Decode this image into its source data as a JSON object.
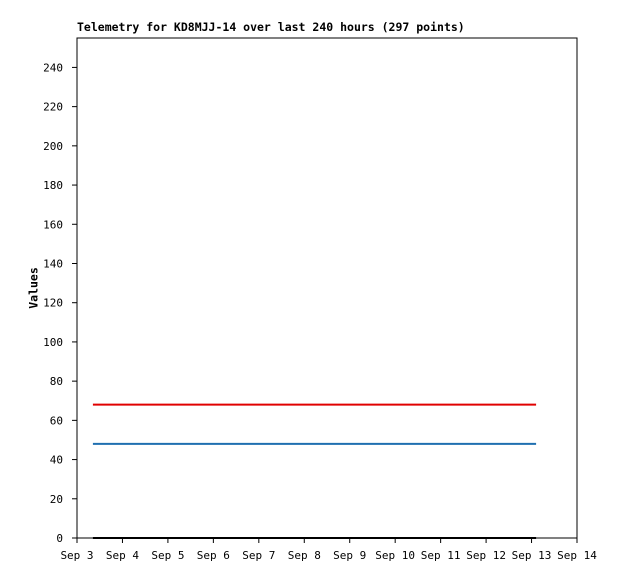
{
  "chart_data": {
    "type": "line",
    "title": "Telemetry for KD8MJJ-14 over last 240 hours (297 points)",
    "ylabel": "Values",
    "xlim": [
      3,
      14
    ],
    "xticks": [
      {
        "value": 3,
        "label": "Sep 3"
      },
      {
        "value": 4,
        "label": "Sep 4"
      },
      {
        "value": 5,
        "label": "Sep 5"
      },
      {
        "value": 6,
        "label": "Sep 6"
      },
      {
        "value": 7,
        "label": "Sep 7"
      },
      {
        "value": 8,
        "label": "Sep 8"
      },
      {
        "value": 9,
        "label": "Sep 9"
      },
      {
        "value": 10,
        "label": "Sep 10"
      },
      {
        "value": 11,
        "label": "Sep 11"
      },
      {
        "value": 12,
        "label": "Sep 12"
      },
      {
        "value": 13,
        "label": "Sep 13"
      },
      {
        "value": 14,
        "label": "Sep 14"
      }
    ],
    "ylim": [
      0,
      255
    ],
    "yticks": [
      0,
      20,
      40,
      60,
      80,
      100,
      120,
      140,
      160,
      180,
      200,
      220,
      240
    ],
    "series": [
      {
        "color": "#e00000",
        "x": [
          3.35,
          13.1
        ],
        "values": [
          68,
          68
        ]
      },
      {
        "color": "#1f6fb0",
        "x": [
          3.35,
          13.1
        ],
        "values": [
          48,
          48
        ]
      },
      {
        "color": "#000000",
        "x": [
          3.35,
          13.1
        ],
        "values": [
          0,
          0
        ]
      }
    ]
  }
}
